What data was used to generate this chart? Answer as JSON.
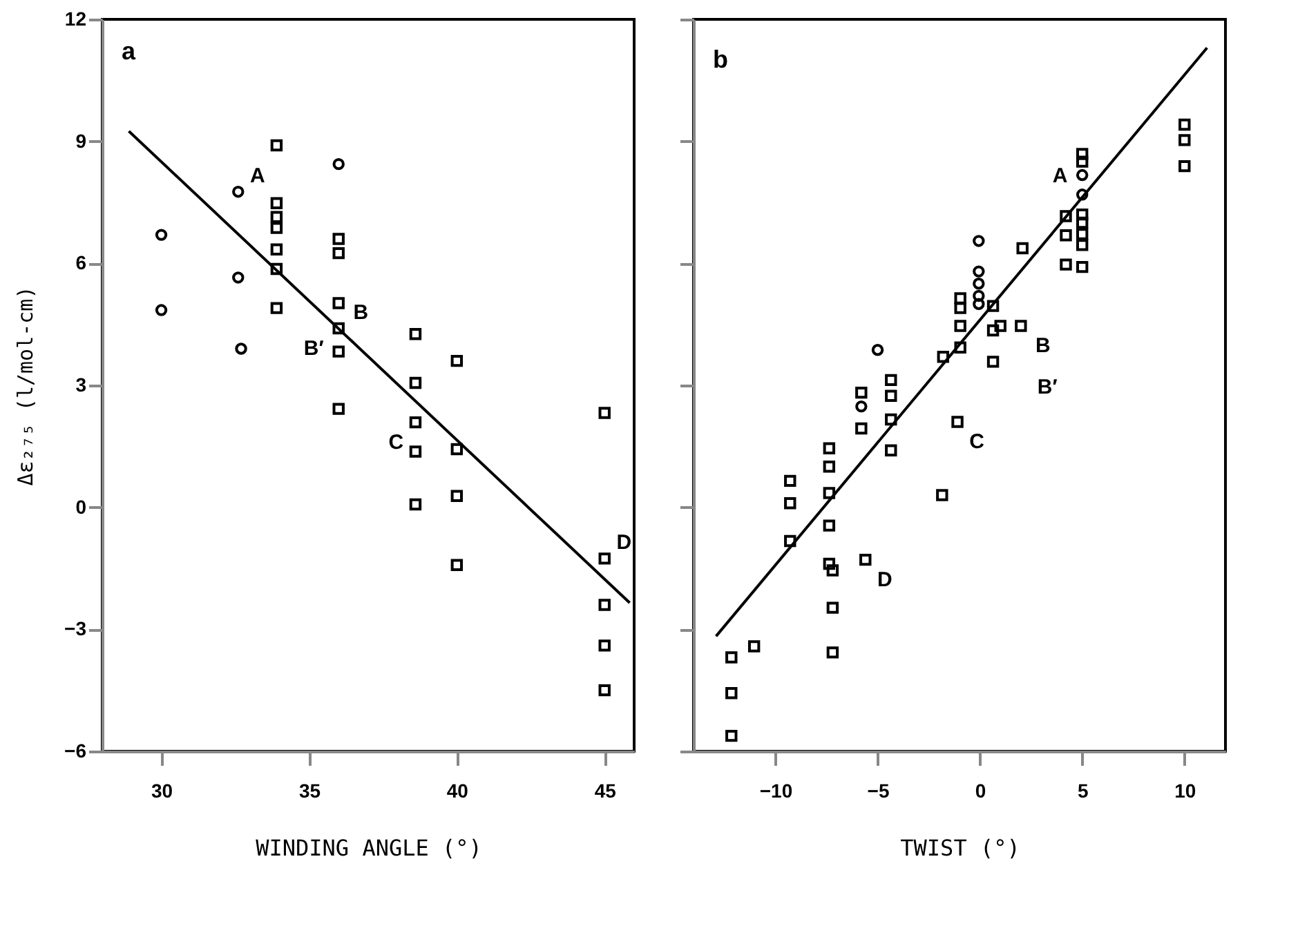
{
  "chart_data": [
    {
      "type": "scatter",
      "title": "a",
      "xlabel": "WINDING ANGLE (°)",
      "ylabel": "Δε₂₇₅   (l/mol-cm)",
      "xlim": [
        28,
        46
      ],
      "xticks": [
        30,
        35,
        40,
        45
      ],
      "ylim": [
        -6,
        12
      ],
      "yticks": [
        -6,
        -3,
        0,
        3,
        6,
        9,
        12
      ],
      "grid": false,
      "series": [
        {
          "marker": "square",
          "color": "#000000",
          "x": [
            33.9,
            33.9,
            33.9,
            33.9,
            33.9,
            33.9,
            33.9,
            36,
            36,
            36,
            36,
            36,
            38.6,
            38.6,
            38.6,
            38.6,
            40,
            40,
            40,
            40,
            45,
            45,
            45,
            45
          ],
          "values": [
            8.9,
            7.48,
            7.14,
            6.87,
            6.34,
            5.86,
            4.9,
            6.6,
            6.25,
            5.02,
            3.83,
            2.42,
            4.26,
            3.06,
            1.37,
            0.07,
            3.6,
            1.43,
            0.28,
            -1.42,
            2.32,
            -2.4,
            -3.4,
            -4.5
          ]
        },
        {
          "marker": "circle",
          "color": "#000000",
          "x": [
            30,
            30,
            32.7,
            36
          ],
          "values": [
            6.7,
            4.85,
            3.9,
            8.44
          ]
        },
        {
          "marker": "circle",
          "color": "#000000",
          "x": [
            32.6,
            32.6
          ],
          "values": [
            7.76,
            5.65
          ]
        },
        {
          "marker": "square",
          "color": "#000000",
          "x": [
            36,
            38.6,
            45
          ],
          "values": [
            4.4,
            2.09,
            -1.26
          ]
        },
        {
          "type": "line",
          "color": "#000000",
          "x": [
            28.9,
            45.85
          ],
          "values": [
            9.25,
            -2.35
          ]
        }
      ],
      "annotations": [
        {
          "text": "A",
          "x": 32.6,
          "y": 7.76
        },
        {
          "text": "B",
          "x": 36,
          "y": 4.4
        },
        {
          "text": "B′",
          "x": 36,
          "y": 4.4
        },
        {
          "text": "C",
          "x": 38.6,
          "y": 2.09
        },
        {
          "text": "D",
          "x": 45,
          "y": -1.26
        }
      ]
    },
    {
      "type": "scatter",
      "title": "b",
      "xlabel": "TWIST (°)",
      "xlim": [
        -14,
        12
      ],
      "xticks": [
        -10,
        -5,
        0,
        5,
        10
      ],
      "ylim": [
        -6,
        12
      ],
      "yticks": [
        -6,
        -3,
        0,
        3,
        6,
        9,
        12
      ],
      "tick_labels": "x",
      "grid": false,
      "series": [
        {
          "marker": "square",
          "color": "#000000",
          "x": [
            -12.15,
            -12.15,
            -12.15,
            -11.04,
            -9.28,
            -9.28,
            -9.28,
            -7.37,
            -7.37,
            -7.37,
            -7.37,
            -7.37,
            -7.2,
            -7.2,
            -7.2,
            -5.8,
            -5.8,
            -4.35,
            -4.35,
            -4.35,
            -4.35,
            -1.85,
            -1.8,
            -0.96,
            -0.96,
            -0.96,
            -0.96,
            0.64,
            0.64,
            0.64,
            2.08,
            4.2,
            4.2,
            4.2,
            5,
            5,
            5,
            5,
            5,
            5,
            5,
            10,
            10,
            10
          ],
          "values": [
            -3.69,
            -4.57,
            -5.62,
            -3.42,
            0.65,
            0.1,
            -0.83,
            1.45,
            1.0,
            0.35,
            -0.45,
            -1.39,
            -1.55,
            -2.47,
            -3.57,
            2.82,
            1.94,
            3.13,
            2.74,
            2.16,
            1.4,
            0.3,
            3.7,
            5.14,
            4.9,
            4.46,
            3.93,
            4.95,
            4.35,
            3.58,
            6.37,
            7.16,
            6.69,
            5.97,
            8.69,
            8.5,
            7.2,
            7.0,
            6.72,
            6.45,
            5.91,
            9.41,
            9.03,
            8.39
          ]
        },
        {
          "marker": "circle",
          "color": "#000000",
          "x": [
            5
          ],
          "values": [
            8.17
          ]
        },
        {
          "marker": "circle",
          "color": "#000000",
          "x": [
            -5.0,
            -5.8,
            -0.06,
            -0.06,
            -0.06,
            -0.06,
            -0.06,
            5
          ],
          "values": [
            3.87,
            2.48,
            6.55,
            5.8,
            5.5,
            5.2,
            5.0,
            7.69
          ]
        },
        {
          "marker": "square",
          "color": "#000000",
          "x": [
            2.0,
            1.0,
            -1.1,
            -5.6
          ],
          "values": [
            4.46,
            4.46,
            2.1,
            -1.29
          ]
        },
        {
          "type": "line",
          "color": "#000000",
          "x": [
            -12.9,
            11.1
          ],
          "values": [
            -3.17,
            11.3
          ]
        }
      ],
      "annotations": [
        {
          "text": "A",
          "x": 5,
          "y": 7.69
        },
        {
          "text": "B",
          "x": 2.0,
          "y": 4.46
        },
        {
          "text": "B′",
          "x": 1.0,
          "y": 4.46
        },
        {
          "text": "C",
          "x": -1.1,
          "y": 2.1
        },
        {
          "text": "D",
          "x": -5.6,
          "y": -1.29
        }
      ]
    }
  ]
}
